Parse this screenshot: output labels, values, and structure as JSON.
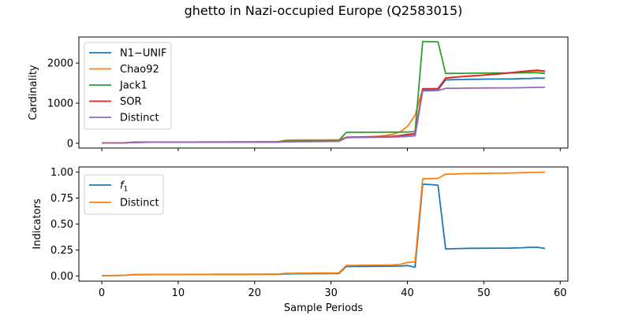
{
  "chart_data": {
    "type": "line",
    "title": "ghetto in Nazi-occupied Europe (Q2583015)",
    "xlabel": "Sample Periods",
    "xlim": [
      -3,
      61
    ],
    "xticks": [
      0,
      10,
      20,
      30,
      40,
      50,
      60
    ],
    "x": [
      0,
      1,
      2,
      3,
      4,
      5,
      6,
      7,
      8,
      9,
      10,
      11,
      12,
      13,
      14,
      15,
      16,
      17,
      18,
      19,
      20,
      21,
      22,
      23,
      24,
      25,
      26,
      27,
      28,
      29,
      30,
      31,
      32,
      33,
      34,
      35,
      36,
      37,
      38,
      39,
      40,
      41,
      42,
      43,
      44,
      45,
      46,
      47,
      48,
      49,
      50,
      51,
      52,
      53,
      54,
      55,
      56,
      57,
      58
    ],
    "panels": [
      {
        "ylabel": "Cardinality",
        "ylim": [
          -120,
          2650
        ],
        "yticks": [
          0,
          1000,
          2000
        ],
        "legend_position": "upper-left",
        "series": [
          {
            "name": "N1−UNIF",
            "color": "#1f77b4",
            "values": [
              5,
              6,
              8,
              10,
              22,
              24,
              25,
              26,
              26,
              27,
              27,
              28,
              28,
              28,
              29,
              29,
              29,
              29,
              30,
              30,
              30,
              31,
              31,
              32,
              40,
              42,
              43,
              44,
              45,
              46,
              47,
              48,
              145,
              148,
              150,
              152,
              155,
              158,
              160,
              180,
              210,
              230,
              1320,
              1325,
              1330,
              1580,
              1585,
              1590,
              1595,
              1596,
              1598,
              1600,
              1601,
              1602,
              1605,
              1612,
              1615,
              1625,
              1620
            ]
          },
          {
            "name": "Chao92",
            "color": "#ff7f0e",
            "values": [
              5,
              6,
              8,
              10,
              22,
              24,
              25,
              26,
              26,
              27,
              28,
              29,
              29,
              30,
              31,
              31,
              32,
              32,
              33,
              34,
              34,
              35,
              35,
              36,
              75,
              80,
              82,
              83,
              84,
              85,
              86,
              88,
              150,
              155,
              158,
              160,
              170,
              190,
              220,
              280,
              420,
              700,
              1350,
              1355,
              1360,
              1630,
              1650,
              1660,
              1680,
              1690,
              1700,
              1715,
              1730,
              1745,
              1760,
              1775,
              1790,
              1810,
              1790
            ]
          },
          {
            "name": "Jack1",
            "color": "#2ca02c",
            "values": [
              5,
              6,
              8,
              10,
              24,
              26,
              27,
              28,
              28,
              29,
              29,
              30,
              30,
              31,
              31,
              32,
              32,
              33,
              34,
              35,
              35,
              36,
              36,
              37,
              55,
              57,
              58,
              59,
              60,
              61,
              62,
              64,
              270,
              272,
              273,
              274,
              275,
              276,
              277,
              278,
              280,
              290,
              2540,
              2535,
              2530,
              1740,
              1742,
              1744,
              1746,
              1748,
              1750,
              1751,
              1752,
              1753,
              1754,
              1756,
              1758,
              1760,
              1740
            ]
          },
          {
            "name": "SOR",
            "color": "#d62728",
            "values": [
              5,
              6,
              8,
              10,
              22,
              24,
              25,
              26,
              26,
              27,
              27,
              28,
              28,
              28,
              29,
              29,
              29,
              29,
              30,
              30,
              30,
              31,
              31,
              32,
              42,
              44,
              45,
              46,
              47,
              48,
              49,
              50,
              150,
              152,
              155,
              158,
              160,
              165,
              170,
              190,
              220,
              240,
              1360,
              1360,
              1365,
              1620,
              1640,
              1660,
              1670,
              1685,
              1700,
              1715,
              1730,
              1750,
              1770,
              1790,
              1810,
              1820,
              1800
            ]
          },
          {
            "name": "Distinct",
            "color": "#9467bd",
            "values": [
              5,
              6,
              8,
              10,
              22,
              24,
              25,
              26,
              26,
              27,
              27,
              28,
              28,
              28,
              29,
              29,
              29,
              29,
              30,
              30,
              30,
              31,
              31,
              32,
              38,
              40,
              41,
              42,
              43,
              44,
              45,
              46,
              140,
              143,
              145,
              147,
              150,
              153,
              155,
              160,
              170,
              185,
              1305,
              1310,
              1315,
              1370,
              1372,
              1374,
              1376,
              1377,
              1378,
              1379,
              1380,
              1381,
              1382,
              1385,
              1390,
              1395,
              1395
            ]
          }
        ]
      },
      {
        "ylabel": "Indicators",
        "ylim": [
          -0.05,
          1.05
        ],
        "yticks": [
          0.0,
          0.25,
          0.5,
          0.75,
          1.0
        ],
        "ytick_labels": [
          "0.00",
          "0.25",
          "0.50",
          "0.75",
          "1.00"
        ],
        "legend_position": "upper-left",
        "series": [
          {
            "name": "f1",
            "color": "#1f77b4",
            "values": [
              0.003,
              0.004,
              0.005,
              0.006,
              0.012,
              0.013,
              0.013,
              0.014,
              0.014,
              0.014,
              0.014,
              0.015,
              0.015,
              0.015,
              0.015,
              0.016,
              0.016,
              0.016,
              0.016,
              0.016,
              0.016,
              0.017,
              0.017,
              0.017,
              0.02,
              0.021,
              0.021,
              0.022,
              0.022,
              0.022,
              0.023,
              0.023,
              0.09,
              0.091,
              0.092,
              0.092,
              0.093,
              0.093,
              0.094,
              0.095,
              0.1,
              0.085,
              0.885,
              0.88,
              0.875,
              0.26,
              0.262,
              0.264,
              0.266,
              0.266,
              0.267,
              0.267,
              0.268,
              0.268,
              0.27,
              0.272,
              0.276,
              0.276,
              0.265
            ]
          },
          {
            "name": "Distinct",
            "color": "#ff7f0e",
            "values": [
              0.003,
              0.004,
              0.005,
              0.006,
              0.012,
              0.013,
              0.013,
              0.014,
              0.014,
              0.014,
              0.014,
              0.015,
              0.015,
              0.015,
              0.015,
              0.016,
              0.016,
              0.016,
              0.016,
              0.016,
              0.016,
              0.017,
              0.017,
              0.017,
              0.025,
              0.026,
              0.027,
              0.027,
              0.028,
              0.028,
              0.028,
              0.029,
              0.1,
              0.102,
              0.103,
              0.104,
              0.105,
              0.105,
              0.106,
              0.11,
              0.13,
              0.135,
              0.935,
              0.938,
              0.94,
              0.98,
              0.982,
              0.984,
              0.986,
              0.987,
              0.988,
              0.989,
              0.99,
              0.991,
              0.993,
              0.995,
              0.997,
              0.998,
              1.0
            ]
          }
        ]
      }
    ]
  }
}
